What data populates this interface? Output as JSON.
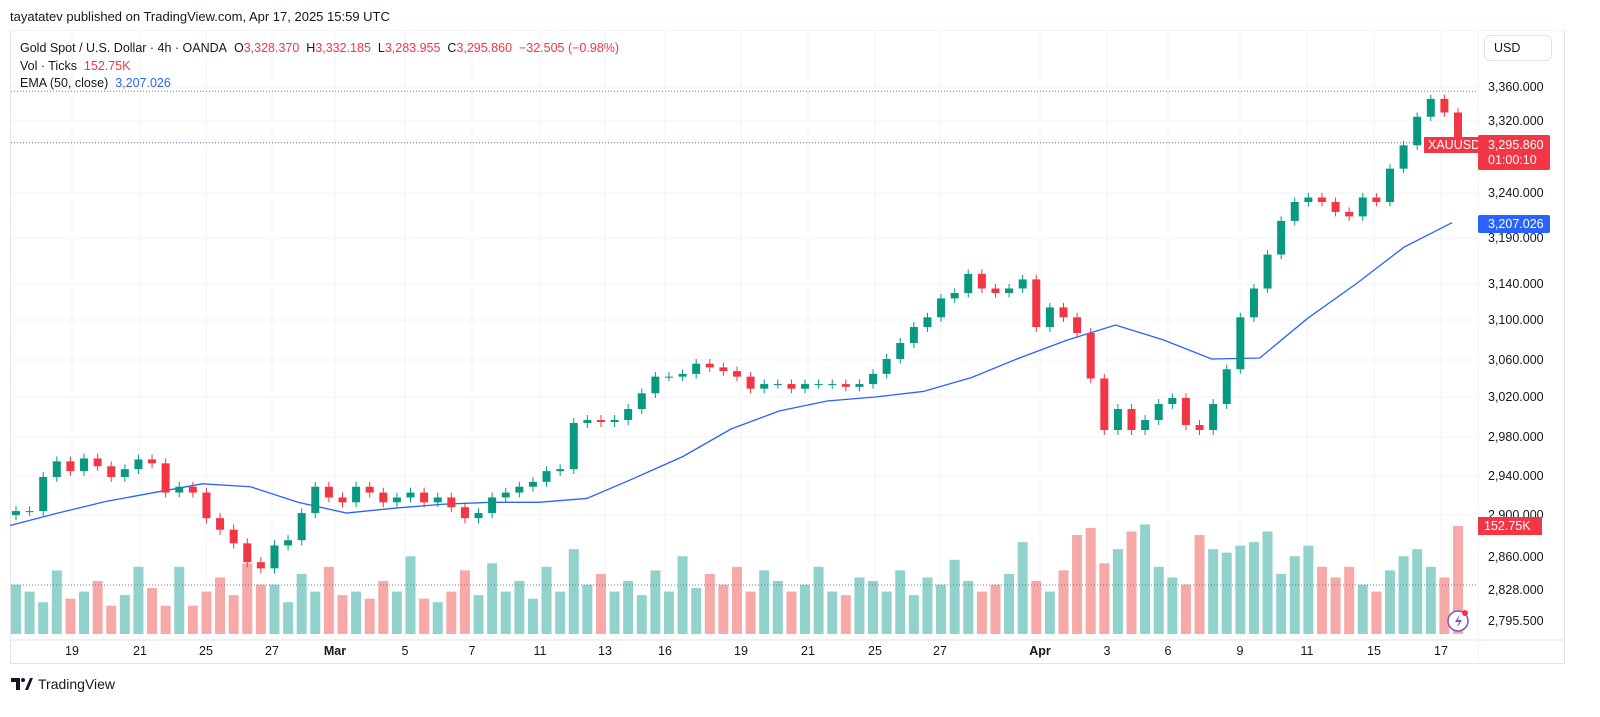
{
  "published": "tayatatev published on TradingView.com, Apr 17, 2025 15:59 UTC",
  "legend": {
    "symbol": "Gold Spot / U.S. Dollar · 4h · OANDA",
    "o_label": "O",
    "o": "3,328.370",
    "h_label": "H",
    "h": "3,332.185",
    "l_label": "L",
    "l": "3,283.955",
    "c_label": "C",
    "c": "3,295.860",
    "change": "−32.505 (−0.98%)",
    "vol_label": "Vol · Ticks",
    "vol": "152.75K",
    "ema_label": "EMA (50, close)",
    "ema": "3,207.026"
  },
  "currency": "USD",
  "price_tag": {
    "symbol": "XAUUSD",
    "price": "3,295.860",
    "countdown": "01:00:10",
    "ema": "3,207.026",
    "volume": "152.75K"
  },
  "colors": {
    "up": "#089981",
    "down": "#f23645",
    "ema": "#2962ff",
    "vol_up": "#92d2cc",
    "vol_down": "#f7a9a7"
  },
  "brand": "TradingView",
  "chart_data": {
    "type": "candlestick",
    "y_ticks": [
      3360,
      3320,
      3240,
      3190,
      3140,
      3100,
      3060,
      3020,
      2980,
      2940,
      2900,
      2860,
      2828,
      2795.5
    ],
    "y_tick_labels": [
      "3,360.000",
      "3,320.000",
      "3,240.000",
      "3,190.000",
      "3,140.000",
      "3,100.000",
      "3,060.000",
      "3,020.000",
      "2,980.000",
      "2,940.000",
      "2,900.000",
      "2,860.000",
      "2,828.000",
      "2,795.500"
    ],
    "x_labels": [
      "19",
      "21",
      "25",
      "27",
      "Mar",
      "5",
      "7",
      "11",
      "13",
      "16",
      "19",
      "21",
      "25",
      "27",
      "Apr",
      "3",
      "6",
      "9",
      "11",
      "15",
      "17"
    ],
    "close": [
      2904,
      2904,
      2939,
      2955,
      2945,
      2958,
      2950,
      2939,
      2947,
      2957,
      2953,
      2923,
      2929,
      2923,
      2897,
      2886,
      2873,
      2855,
      2849,
      2871,
      2876,
      2902,
      2929,
      2918,
      2913,
      2929,
      2923,
      2913,
      2918,
      2923,
      2913,
      2918,
      2908,
      2897,
      2902,
      2918,
      2923,
      2929,
      2934,
      2945,
      2947,
      2994,
      2997,
      2995,
      2997,
      3008,
      3024,
      3042,
      3042,
      3045,
      3056,
      3052,
      3048,
      3042,
      3029,
      3034,
      3034,
      3029,
      3034,
      3034,
      3034,
      3031,
      3034,
      3045,
      3061,
      3077,
      3093,
      3103,
      3124,
      3130,
      3151,
      3135,
      3130,
      3135,
      3145,
      3093,
      3114,
      3103,
      3087,
      3040,
      2987,
      3008,
      2987,
      2997,
      3013,
      3019,
      2992,
      2987,
      3013,
      3050,
      3103,
      3135,
      3172,
      3209,
      3230,
      3235,
      3230,
      3219,
      3214,
      3235,
      3230,
      3267,
      3293,
      3325,
      3346,
      3330,
      3295.86
    ],
    "volume_k": [
      70,
      60,
      45,
      90,
      50,
      60,
      75,
      40,
      55,
      95,
      65,
      40,
      95,
      40,
      60,
      80,
      55,
      100,
      70,
      70,
      45,
      85,
      60,
      95,
      55,
      60,
      50,
      75,
      60,
      110,
      50,
      45,
      60,
      90,
      55,
      100,
      60,
      75,
      50,
      95,
      60,
      120,
      70,
      85,
      60,
      75,
      55,
      90,
      60,
      110,
      65,
      85,
      70,
      95,
      60,
      90,
      75,
      60,
      70,
      95,
      60,
      55,
      80,
      75,
      60,
      90,
      55,
      80,
      70,
      105,
      75,
      60,
      70,
      85,
      130,
      75,
      60,
      90,
      140,
      150,
      100,
      120,
      145,
      155,
      95,
      80,
      70,
      140,
      120,
      115,
      125,
      130,
      145,
      85,
      110,
      125,
      95,
      80,
      95,
      70,
      60,
      90,
      110,
      120,
      95,
      80,
      152.75
    ],
    "ema_50": [
      2890,
      2902,
      2914,
      2923,
      2932,
      2929,
      2913,
      2902,
      2907,
      2911,
      2913,
      2913,
      2917,
      2938,
      2960,
      2988,
      3006,
      3016,
      3020,
      3026,
      3041,
      3062,
      3080,
      3095,
      3080,
      3061,
      3062,
      3102,
      3140,
      3180,
      3207.026
    ],
    "high_line": 3355,
    "last_price": 3295.86
  }
}
